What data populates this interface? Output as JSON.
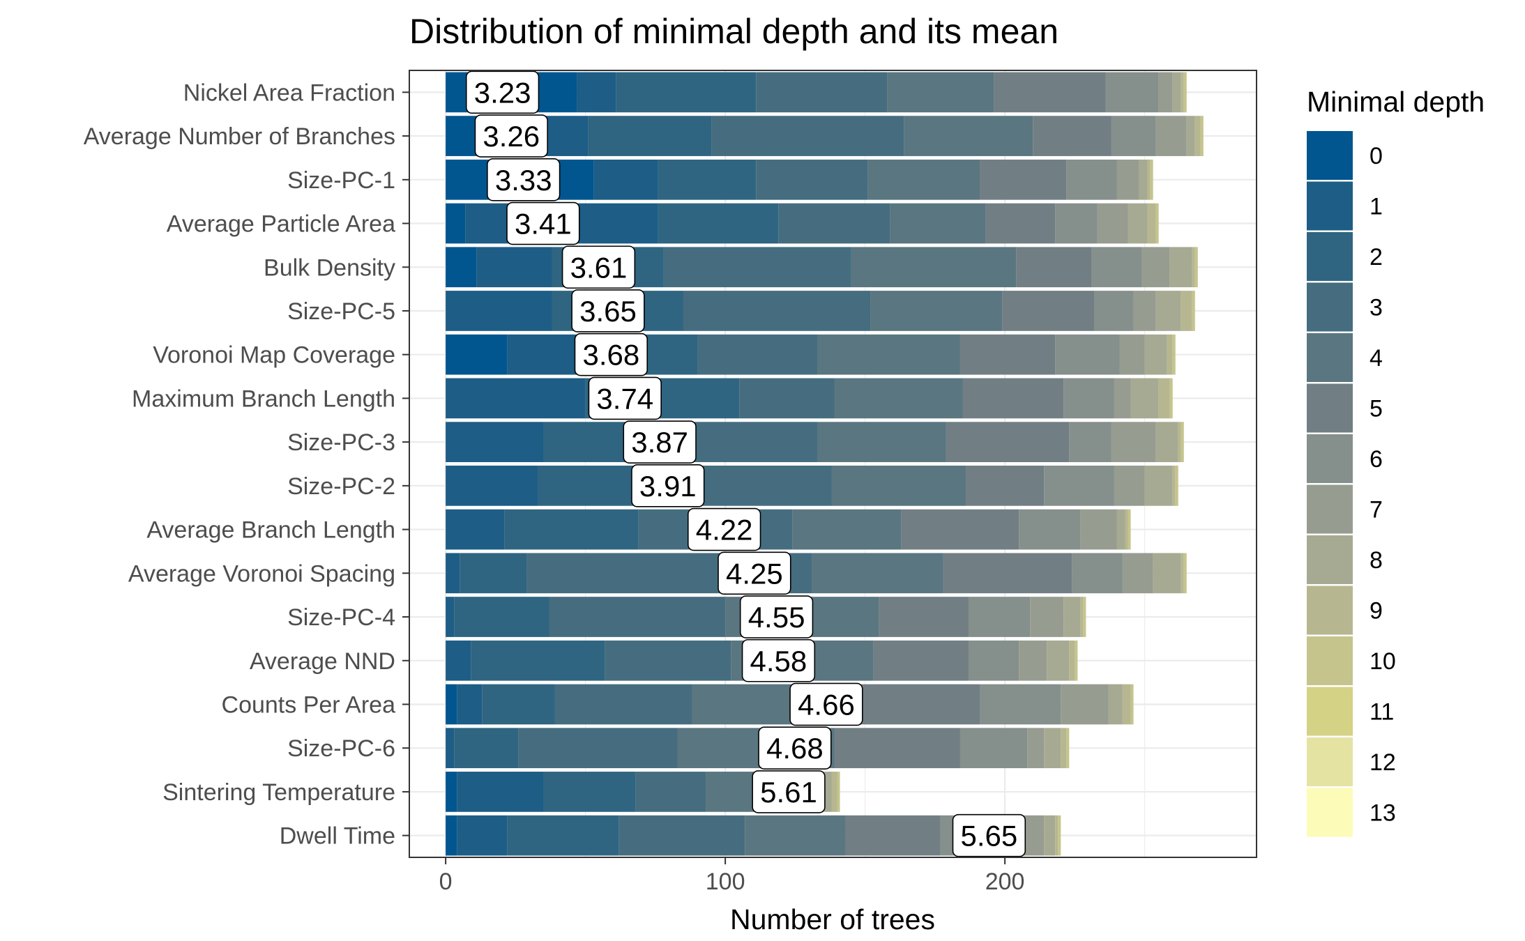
{
  "chart_data": {
    "type": "bar",
    "orientation": "horizontal",
    "stacked": true,
    "title": "Distribution of minimal depth and its mean",
    "xlabel": "Number of trees",
    "ylabel": "",
    "xlim": [
      -13,
      290
    ],
    "xticks": [
      0,
      100,
      200
    ],
    "grid": true,
    "legend": {
      "title": "Minimal depth",
      "position": "right"
    },
    "depth_levels": [
      "0",
      "1",
      "2",
      "3",
      "4",
      "5",
      "6",
      "7",
      "8",
      "9",
      "10",
      "11",
      "12",
      "13"
    ],
    "colors": [
      "#02568f",
      "#1d5d86",
      "#2f6581",
      "#456d7f",
      "#5a7680",
      "#717f84",
      "#858f8b",
      "#979c90",
      "#a7aa92",
      "#b6b790",
      "#c5c48d",
      "#d4d285",
      "#e5e3a2",
      "#fcfcb8"
    ],
    "categories": [
      "Nickel Area Fraction",
      "Average Number of Branches",
      "Size-PC-1",
      "Average Particle Area",
      "Bulk Density",
      "Size-PC-5",
      "Voronoi Map Coverage",
      "Maximum Branch Length",
      "Size-PC-3",
      "Size-PC-2",
      "Average Branch Length",
      "Average Voronoi Spacing",
      "Size-PC-4",
      "Average NND",
      "Counts Per Area",
      "Size-PC-6",
      "Sintering Temperature",
      "Dwell Time"
    ],
    "counts": [
      [
        47,
        14,
        50,
        47,
        38,
        40,
        19,
        5,
        3,
        1,
        1,
        0,
        0,
        0
      ],
      [
        30,
        21,
        44,
        69,
        46,
        28,
        16,
        11,
        3,
        2,
        1,
        0,
        0,
        0
      ],
      [
        53,
        23,
        35,
        40,
        40,
        31,
        18,
        8,
        3,
        1,
        1,
        0,
        0,
        0
      ],
      [
        7,
        69,
        43,
        40,
        34,
        25,
        15,
        11,
        7,
        3,
        1,
        0,
        0,
        0
      ],
      [
        11,
        27,
        40,
        67,
        59,
        27,
        18,
        10,
        8,
        1,
        1,
        0,
        0,
        0
      ],
      [
        0,
        38,
        47,
        67,
        47,
        33,
        14,
        8,
        9,
        4,
        1,
        0,
        0,
        0
      ],
      [
        22,
        43,
        25,
        43,
        51,
        34,
        23,
        9,
        8,
        2,
        1,
        0,
        0,
        0
      ],
      [
        0,
        50,
        55,
        34,
        46,
        36,
        18,
        6,
        10,
        4,
        1,
        0,
        0,
        0
      ],
      [
        0,
        35,
        50,
        48,
        46,
        44,
        15,
        16,
        8,
        1,
        1,
        0,
        0,
        0
      ],
      [
        0,
        33,
        55,
        50,
        48,
        28,
        25,
        11,
        10,
        1,
        1,
        0,
        0,
        0
      ],
      [
        0,
        21,
        48,
        55,
        39,
        42,
        22,
        13,
        3,
        1,
        1,
        0,
        0,
        0
      ],
      [
        0,
        5,
        24,
        102,
        47,
        46,
        18,
        11,
        10,
        1,
        1,
        0,
        0,
        0
      ],
      [
        0,
        3,
        34,
        63,
        55,
        32,
        22,
        12,
        6,
        1,
        1,
        0,
        0,
        0
      ],
      [
        0,
        9,
        48,
        45,
        51,
        34,
        18,
        10,
        8,
        2,
        1,
        0,
        0,
        0
      ],
      [
        4,
        9,
        26,
        49,
        55,
        48,
        29,
        17,
        5,
        3,
        1,
        0,
        0,
        0
      ],
      [
        0,
        3,
        23,
        57,
        56,
        45,
        24,
        6,
        6,
        2,
        1,
        0,
        0,
        0
      ],
      [
        4,
        31,
        33,
        25,
        23,
        6,
        7,
        5,
        4,
        2,
        1,
        0,
        0,
        0
      ],
      [
        4,
        18,
        40,
        45,
        36,
        34,
        22,
        15,
        4,
        1,
        1,
        0,
        0,
        0
      ]
    ],
    "mean_min_depth": [
      3.23,
      3.26,
      3.33,
      3.41,
      3.61,
      3.65,
      3.68,
      3.74,
      3.87,
      3.91,
      4.22,
      4.25,
      4.55,
      4.58,
      4.66,
      4.68,
      5.61,
      5.65
    ],
    "mean_labels": [
      "3.23",
      "3.26",
      "3.33",
      "3.41",
      "3.61",
      "3.65",
      "3.68",
      "3.74",
      "3.87",
      "3.91",
      "4.22",
      "4.25",
      "4.55",
      "4.58",
      "4.66",
      "4.68",
      "5.61",
      "5.65"
    ]
  }
}
